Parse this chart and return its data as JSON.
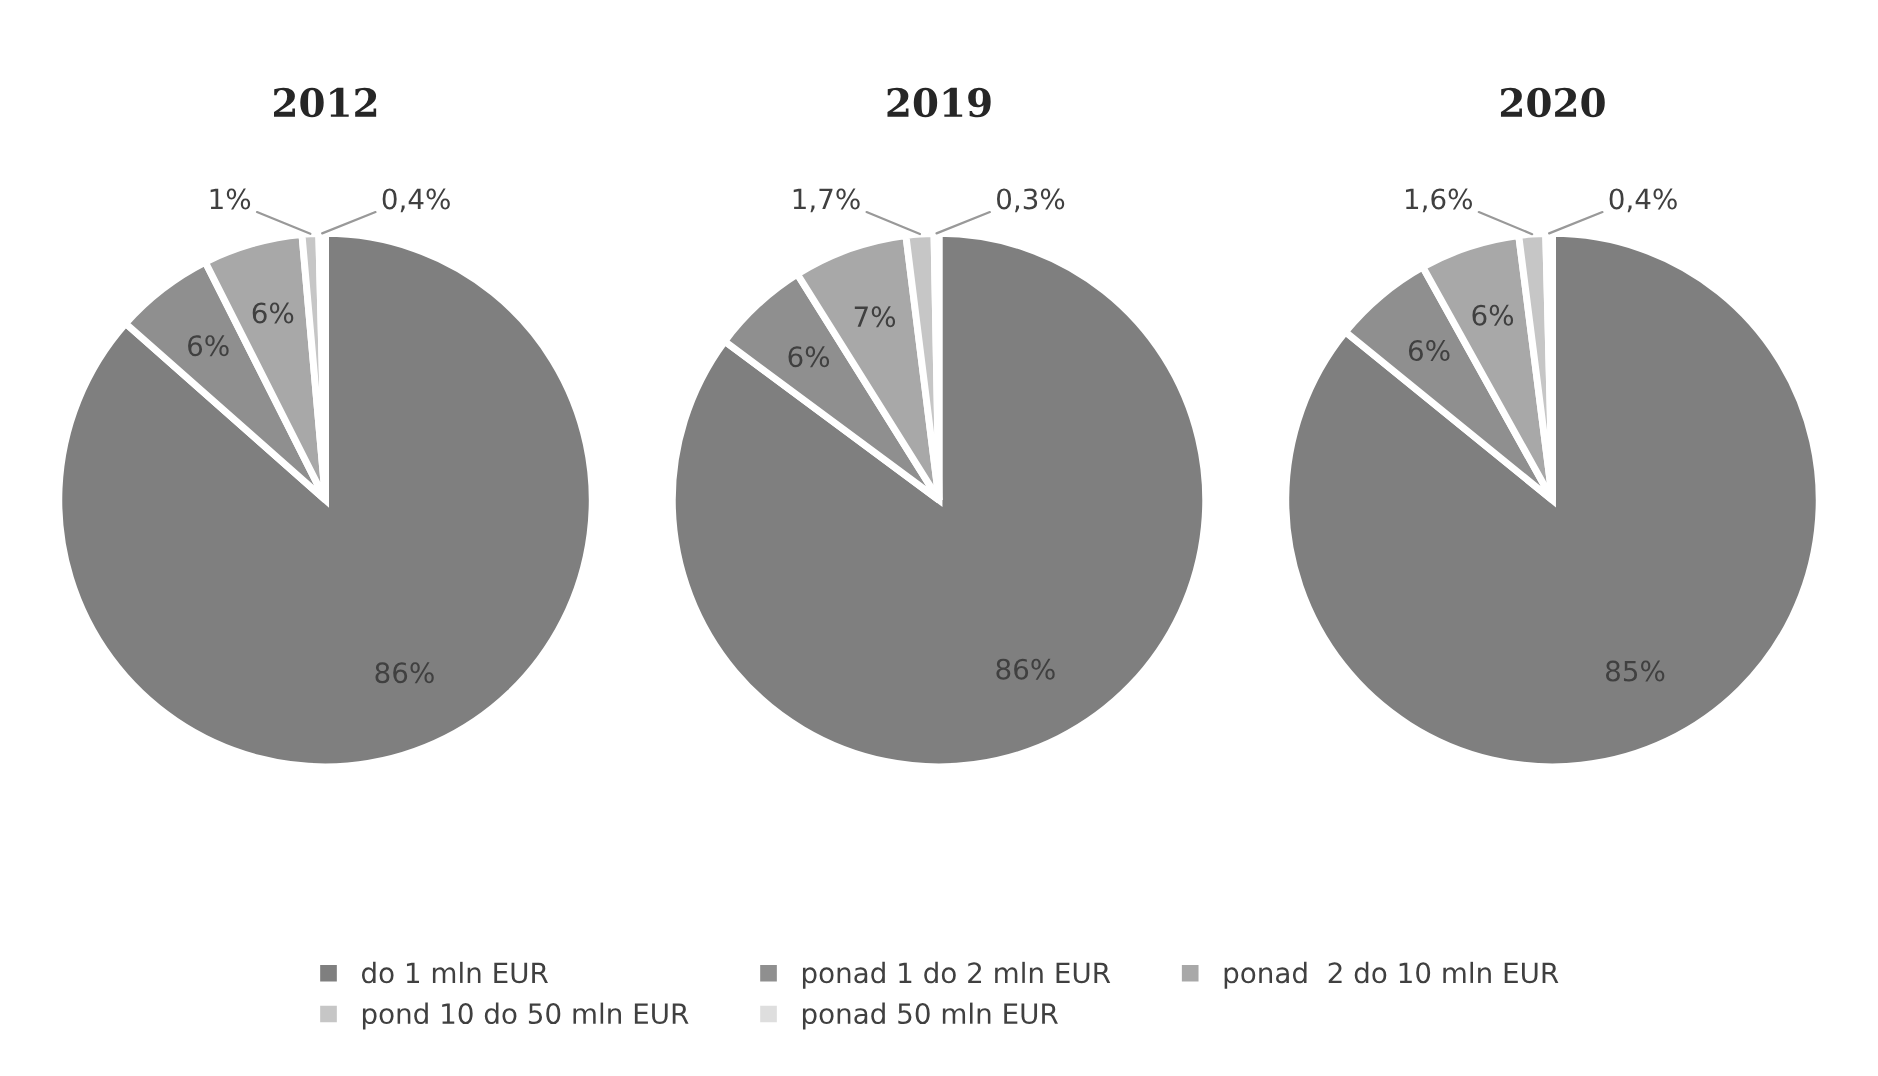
{
  "chart_data": [
    {
      "type": "pie",
      "title": "2012",
      "categories": [
        "do 1 mln EUR",
        "ponad 1 do 2 mln EUR",
        "ponad  2 do 10 mln EUR",
        "pond 10 do 50 mln EUR",
        "ponad 50 mln EUR"
      ],
      "values": [
        86,
        6,
        6,
        1,
        0.4
      ],
      "value_labels": [
        "86%",
        "6%",
        "6%",
        "1%",
        "0,4%"
      ],
      "colors": [
        "#7f7f7f",
        "#8f8f8f",
        "#a8a8a8",
        "#c6c6c6",
        "#dedede"
      ],
      "legend": "bottom"
    },
    {
      "type": "pie",
      "title": "2019",
      "categories": [
        null,
        null,
        null,
        null,
        null
      ],
      "values": [
        86,
        6,
        7,
        1.7,
        0.3
      ],
      "value_labels": [
        "86%",
        "6%",
        "7%",
        "1,7%",
        "0,3%"
      ],
      "colors": [
        "#7f7f7f",
        "#8f8f8f",
        "#a8a8a8",
        "#c6c6c6",
        "#dedede"
      ]
    },
    {
      "type": "pie",
      "title": "2020",
      "categories": [
        null,
        null,
        null,
        null,
        null
      ],
      "values": [
        85,
        6,
        6,
        1.6,
        0.4
      ],
      "value_labels": [
        "85%",
        "6%",
        "6%",
        "1,6%",
        "0,4%"
      ],
      "colors": [
        "#7f7f7f",
        "#8f8f8f",
        "#a8a8a8",
        "#c6c6c6",
        "#dedede"
      ]
    }
  ]
}
